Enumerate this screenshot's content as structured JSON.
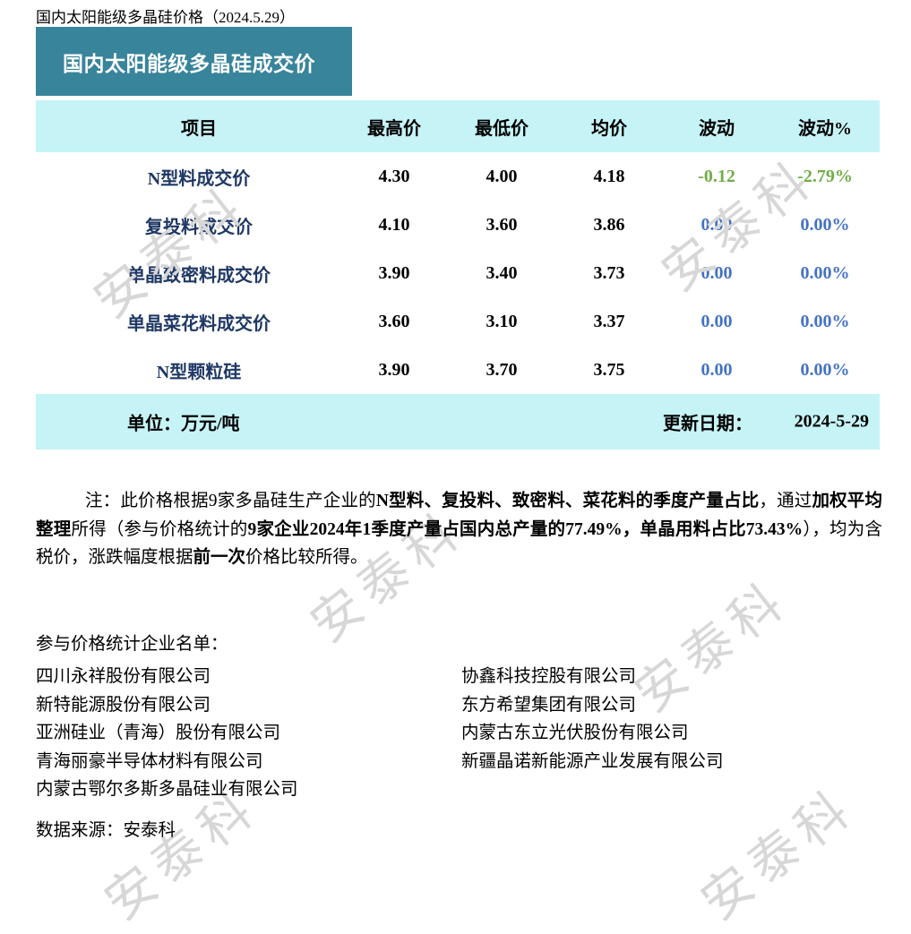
{
  "page_title": "国内太阳能级多晶硅价格（2024.5.29）",
  "banner": {
    "title": "国内太阳能级多晶硅成交价"
  },
  "table": {
    "columns": [
      "项目",
      "最高价",
      "最低价",
      "均价",
      "波动",
      "波动%"
    ],
    "rows": [
      {
        "item": "N型料成交价",
        "high": "4.30",
        "low": "4.00",
        "avg": "4.18",
        "change": "-0.12",
        "change_pct": "-2.79%",
        "trend": "down"
      },
      {
        "item": "复投料成交价",
        "high": "4.10",
        "low": "3.60",
        "avg": "3.86",
        "change": "0.00",
        "change_pct": "0.00%",
        "trend": "flat"
      },
      {
        "item": "单晶致密料成交价",
        "high": "3.90",
        "low": "3.40",
        "avg": "3.73",
        "change": "0.00",
        "change_pct": "0.00%",
        "trend": "flat"
      },
      {
        "item": "单晶菜花料成交价",
        "high": "3.60",
        "low": "3.10",
        "avg": "3.37",
        "change": "0.00",
        "change_pct": "0.00%",
        "trend": "flat"
      },
      {
        "item": "N型颗粒硅",
        "high": "3.90",
        "low": "3.70",
        "avg": "3.75",
        "change": "0.00",
        "change_pct": "0.00%",
        "trend": "flat"
      }
    ],
    "footer": {
      "unit_label": "单位：万元/吨",
      "update_label": "更新日期：",
      "update_date": "2024-5-29"
    }
  },
  "note": {
    "segments": [
      {
        "text": "注：此价格根据9家多晶硅生产企业的",
        "bold": false
      },
      {
        "text": "N型料、复投料、致密料、菜花料的季度产量占比",
        "bold": true
      },
      {
        "text": "，通过",
        "bold": false
      },
      {
        "text": "加权平均整理",
        "bold": true
      },
      {
        "text": "所得（参与价格统计的",
        "bold": false
      },
      {
        "text": "9家企业2024年1季度产量占国内总产量的77.49%，单晶用料占比73.43%",
        "bold": true
      },
      {
        "text": "），均为含税价，涨跌幅度根据",
        "bold": false
      },
      {
        "text": "前一次",
        "bold": true
      },
      {
        "text": "价格比较所得。",
        "bold": false
      }
    ]
  },
  "companies": {
    "heading": "参与价格统计企业名单：",
    "left": [
      "四川永祥股份有限公司",
      "新特能源股份有限公司",
      "亚洲硅业（青海）股份有限公司",
      "青海丽豪半导体材料有限公司",
      "内蒙古鄂尔多斯多晶硅业有限公司"
    ],
    "right": [
      "协鑫科技控股有限公司",
      "东方希望集团有限公司",
      "内蒙古东立光伏股份有限公司",
      "新疆晶诺新能源产业发展有限公司"
    ]
  },
  "source": "数据来源：安泰科",
  "watermark": {
    "text": "安泰科"
  },
  "colors": {
    "banner_teal": "#38849B",
    "row_band_cyan": "#C6F3F6",
    "item_label_navy": "#1F3864",
    "decrease_green": "#70AD47",
    "no_change_blue": "#4472C4",
    "watermark_gray": "#D7D7D7"
  }
}
